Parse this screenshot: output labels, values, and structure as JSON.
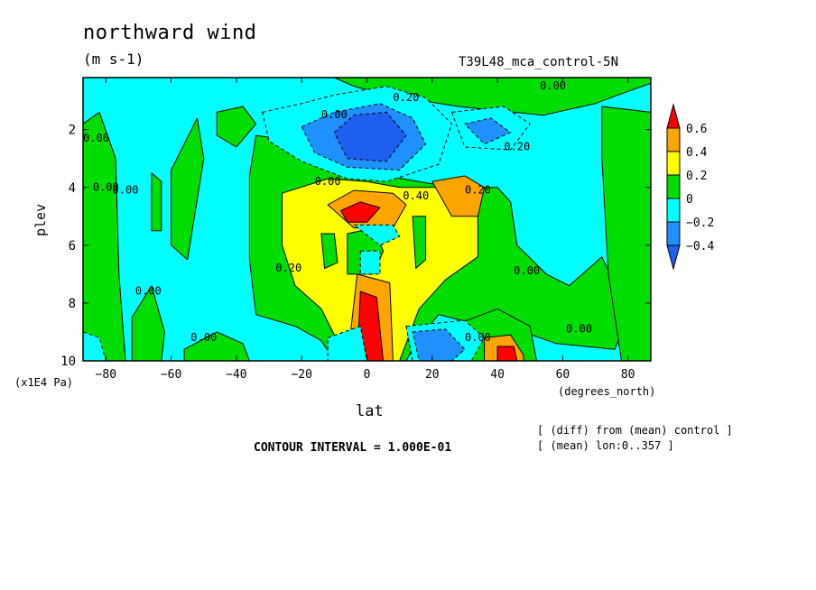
{
  "header": {
    "title": "northward wind",
    "units": "(m s-1)",
    "run": "T39L48_mca_control-5N"
  },
  "axes": {
    "ylabel": "plev",
    "yunit": "(x1E4 Pa)",
    "xlabel": "lat",
    "xunit": "(degrees_north)"
  },
  "footer": {
    "interval": "CONTOUR INTERVAL = 1.000E-01",
    "note1": "[ (diff) from (mean) control ]",
    "note2": "[ (mean) lon:0..357 ]"
  },
  "colors": {
    "c_lt_m04": "#1e5ff0",
    "c_m04_m02": "#1e90ff",
    "c_m02_0": "#00ffff",
    "c_0_02": "#00dd00",
    "c_02_04": "#ffff00",
    "c_04_06": "#ffa500",
    "c_gt_06": "#ff0000"
  },
  "chart_data": {
    "type": "heatmap",
    "x_ticks": [
      -80,
      -60,
      -40,
      -20,
      0,
      20,
      40,
      60,
      80
    ],
    "y_ticks": [
      2,
      4,
      6,
      8,
      10
    ],
    "xlim": [
      -87,
      87
    ],
    "ylim": [
      10,
      0.2
    ],
    "colorbar": {
      "levels": [
        0.6,
        0.4,
        0.2,
        0,
        -0.2,
        -0.4
      ],
      "level_labels": [
        "0.6",
        "0.4",
        "0.2",
        "0",
        "-0.2",
        "-0.4"
      ]
    },
    "contour_labels": [
      {
        "text": "0.20",
        "lat": 12,
        "plev": 0.9
      },
      {
        "text": "0.00",
        "lat": -10,
        "plev": 1.5
      },
      {
        "text": "0.00",
        "lat": 57,
        "plev": 0.5
      },
      {
        "text": "0.20",
        "lat": 46,
        "plev": 2.6
      },
      {
        "text": "0.00",
        "lat": -83,
        "plev": 2.3
      },
      {
        "text": "0.00",
        "lat": -80,
        "plev": 4.0
      },
      {
        "text": "0.00",
        "lat": -74,
        "plev": 4.1
      },
      {
        "text": "0.00",
        "lat": -12,
        "plev": 3.8
      },
      {
        "text": "0.40",
        "lat": 15,
        "plev": 4.3
      },
      {
        "text": "0.20",
        "lat": 34,
        "plev": 4.1
      },
      {
        "text": "0.20",
        "lat": -24,
        "plev": 6.8
      },
      {
        "text": "0.00",
        "lat": 49,
        "plev": 6.9
      },
      {
        "text": "0.00",
        "lat": -67,
        "plev": 7.6
      },
      {
        "text": "0.00",
        "lat": 34,
        "plev": 9.2
      },
      {
        "text": "0.00",
        "lat": 65,
        "plev": 8.9
      },
      {
        "text": "0.00",
        "lat": -50,
        "plev": 9.2
      }
    ],
    "regions": [
      {
        "level": 0,
        "poly": [
          [
            -87,
            0.2
          ],
          [
            87,
            0.2
          ],
          [
            87,
            10
          ],
          [
            -87,
            10
          ]
        ]
      },
      {
        "level": 1,
        "poly": [
          [
            -87,
            1.8
          ],
          [
            -82,
            1.4
          ],
          [
            -77,
            3
          ],
          [
            -76,
            7
          ],
          [
            -74,
            10
          ],
          [
            -87,
            10
          ]
        ]
      },
      {
        "level": 1,
        "poly": [
          [
            -72,
            8.5
          ],
          [
            -66,
            7.4
          ],
          [
            -62,
            9
          ],
          [
            -63,
            10
          ],
          [
            -72,
            10
          ]
        ]
      },
      {
        "level": 1,
        "poly": [
          [
            -56,
            9.6
          ],
          [
            -46,
            9
          ],
          [
            -38,
            9.4
          ],
          [
            -36,
            10
          ],
          [
            -56,
            10
          ]
        ]
      },
      {
        "level": 1,
        "poly": [
          [
            -66,
            3.5
          ],
          [
            -63,
            3.8
          ],
          [
            -63,
            5.5
          ],
          [
            -66,
            5.5
          ]
        ]
      },
      {
        "level": 1,
        "poly": [
          [
            -87,
            0.2
          ],
          [
            -10,
            0.2
          ],
          [
            -4,
            0.5
          ],
          [
            6,
            0.8
          ],
          [
            28,
            1.2
          ],
          [
            54,
            1.5
          ],
          [
            70,
            1.1
          ],
          [
            77,
            0.8
          ],
          [
            87,
            0.4
          ],
          [
            87,
            0.2
          ]
        ]
      },
      {
        "level": 1,
        "poly": [
          [
            -46,
            1.4
          ],
          [
            -38,
            1.2
          ],
          [
            -34,
            1.8
          ],
          [
            -40,
            2.6
          ],
          [
            -46,
            2.2
          ]
        ]
      },
      {
        "level": 1,
        "poly": [
          [
            -34,
            2.2
          ],
          [
            -22,
            2.4
          ],
          [
            -8,
            3.6
          ],
          [
            6,
            3.6
          ],
          [
            26,
            4
          ],
          [
            40,
            4
          ],
          [
            44,
            4.5
          ],
          [
            46,
            6
          ],
          [
            55,
            7
          ],
          [
            62,
            7.4
          ],
          [
            72,
            6.4
          ],
          [
            80,
            8.4
          ],
          [
            76,
            9.6
          ],
          [
            58,
            9.4
          ],
          [
            48,
            9
          ],
          [
            36,
            8.8
          ],
          [
            22,
            8.4
          ],
          [
            16,
            9.2
          ],
          [
            12,
            10
          ],
          [
            -10,
            10
          ],
          [
            -14,
            9.3
          ],
          [
            -22,
            8.8
          ],
          [
            -34,
            8.4
          ],
          [
            -36,
            6.5
          ],
          [
            -36,
            3.6
          ]
        ]
      },
      {
        "level": 1,
        "poly": [
          [
            72,
            1.2
          ],
          [
            87,
            1.4
          ],
          [
            87,
            10
          ],
          [
            78,
            10
          ],
          [
            74,
            7
          ],
          [
            72,
            3
          ]
        ]
      },
      {
        "level": 1,
        "poly": [
          [
            -60,
            3.4
          ],
          [
            -52,
            1.6
          ],
          [
            -50,
            3
          ],
          [
            -55,
            6.5
          ],
          [
            -60,
            6
          ]
        ]
      },
      {
        "level": 1,
        "poly": [
          [
            26,
            8.8
          ],
          [
            40,
            8.2
          ],
          [
            50,
            8.8
          ],
          [
            52,
            10
          ],
          [
            28,
            10
          ]
        ]
      },
      {
        "level": 2,
        "poly": [
          [
            -26,
            4.2
          ],
          [
            -12,
            3.7
          ],
          [
            0,
            3.8
          ],
          [
            10,
            4
          ],
          [
            26,
            4
          ],
          [
            34,
            4.6
          ],
          [
            34,
            6.4
          ],
          [
            24,
            7.2
          ],
          [
            16,
            8.2
          ],
          [
            10,
            10
          ],
          [
            -6,
            10
          ],
          [
            -14,
            8.2
          ],
          [
            -22,
            7.4
          ],
          [
            -26,
            6
          ]
        ]
      },
      {
        "level": 1,
        "poly": [
          [
            -14,
            5.6
          ],
          [
            -10,
            5.6
          ],
          [
            -9,
            6.6
          ],
          [
            -13,
            6.8
          ]
        ]
      },
      {
        "level": 1,
        "poly": [
          [
            -6,
            5.6
          ],
          [
            2,
            5.4
          ],
          [
            5,
            6.2
          ],
          [
            2,
            7
          ],
          [
            -6,
            7
          ]
        ]
      },
      {
        "level": 1,
        "poly": [
          [
            14,
            5
          ],
          [
            18,
            5
          ],
          [
            18,
            6.5
          ],
          [
            15,
            6.8
          ]
        ]
      },
      {
        "level": 3,
        "poly": [
          [
            -12,
            4.6
          ],
          [
            -4,
            4.1
          ],
          [
            8,
            4.2
          ],
          [
            12,
            4.6
          ],
          [
            8,
            5.4
          ],
          [
            -4,
            5.4
          ]
        ]
      },
      {
        "level": 3,
        "poly": [
          [
            20,
            3.8
          ],
          [
            30,
            3.6
          ],
          [
            36,
            4
          ],
          [
            34,
            5
          ],
          [
            26,
            5
          ]
        ]
      },
      {
        "level": 3,
        "poly": [
          [
            -3,
            7
          ],
          [
            7,
            7.3
          ],
          [
            8,
            10
          ],
          [
            -6,
            10
          ]
        ]
      },
      {
        "level": 3,
        "poly": [
          [
            36,
            9.2
          ],
          [
            44,
            9.1
          ],
          [
            48,
            9.8
          ],
          [
            48,
            10
          ],
          [
            36,
            10
          ]
        ]
      },
      {
        "level": 4,
        "poly": [
          [
            -8,
            4.8
          ],
          [
            -2,
            4.5
          ],
          [
            4,
            4.7
          ],
          [
            0,
            5.2
          ],
          [
            -6,
            5.2
          ]
        ]
      },
      {
        "level": 4,
        "poly": [
          [
            -2,
            7.6
          ],
          [
            3,
            7.8
          ],
          [
            5,
            10
          ],
          [
            -3,
            10
          ]
        ]
      },
      {
        "level": 4,
        "poly": [
          [
            40,
            9.5
          ],
          [
            45,
            9.5
          ],
          [
            46,
            10
          ],
          [
            40,
            10
          ]
        ]
      },
      {
        "level": -1,
        "poly": [
          [
            -32,
            1.4
          ],
          [
            -20,
            1.1
          ],
          [
            -10,
            0.8
          ],
          [
            6,
            0.5
          ],
          [
            18,
            0.9
          ],
          [
            26,
            1.8
          ],
          [
            22,
            3.2
          ],
          [
            6,
            3.8
          ],
          [
            -6,
            3.7
          ],
          [
            -20,
            3.1
          ],
          [
            -30,
            2.4
          ]
        ]
      },
      {
        "level": -1,
        "poly": [
          [
            -4,
            5.3
          ],
          [
            8,
            5.3
          ],
          [
            10,
            5.7
          ],
          [
            4,
            6
          ]
        ]
      },
      {
        "level": -1,
        "poly": [
          [
            -2,
            6.2
          ],
          [
            4,
            6.2
          ],
          [
            4,
            7
          ],
          [
            -2,
            7
          ]
        ]
      },
      {
        "level": -1,
        "poly": [
          [
            -12,
            9.2
          ],
          [
            -2,
            8.8
          ],
          [
            0,
            10
          ],
          [
            -12,
            10
          ]
        ]
      },
      {
        "level": -1,
        "poly": [
          [
            12,
            8.8
          ],
          [
            30,
            8.6
          ],
          [
            36,
            9.2
          ],
          [
            32,
            10
          ],
          [
            14,
            10
          ]
        ]
      },
      {
        "level": -1,
        "poly": [
          [
            26,
            1.4
          ],
          [
            42,
            1.2
          ],
          [
            50,
            1.8
          ],
          [
            44,
            2.7
          ],
          [
            30,
            2.6
          ]
        ]
      },
      {
        "level": -1,
        "poly": [
          [
            -87,
            9
          ],
          [
            -82,
            9.2
          ],
          [
            -80,
            10
          ],
          [
            -87,
            10
          ]
        ]
      },
      {
        "level": -2,
        "poly": [
          [
            -20,
            1.9
          ],
          [
            -10,
            1.4
          ],
          [
            4,
            1.1
          ],
          [
            14,
            1.6
          ],
          [
            18,
            2.5
          ],
          [
            10,
            3.4
          ],
          [
            -6,
            3.3
          ],
          [
            -16,
            2.8
          ]
        ]
      },
      {
        "level": -2,
        "poly": [
          [
            14,
            9
          ],
          [
            24,
            8.9
          ],
          [
            30,
            9.6
          ],
          [
            26,
            10
          ],
          [
            16,
            10
          ]
        ]
      },
      {
        "level": -2,
        "poly": [
          [
            30,
            1.8
          ],
          [
            38,
            1.6
          ],
          [
            44,
            2.1
          ],
          [
            36,
            2.5
          ]
        ]
      },
      {
        "level": -3,
        "poly": [
          [
            -10,
            2.1
          ],
          [
            -4,
            1.5
          ],
          [
            6,
            1.4
          ],
          [
            12,
            2.2
          ],
          [
            6,
            3.1
          ],
          [
            -6,
            3
          ]
        ]
      }
    ]
  }
}
